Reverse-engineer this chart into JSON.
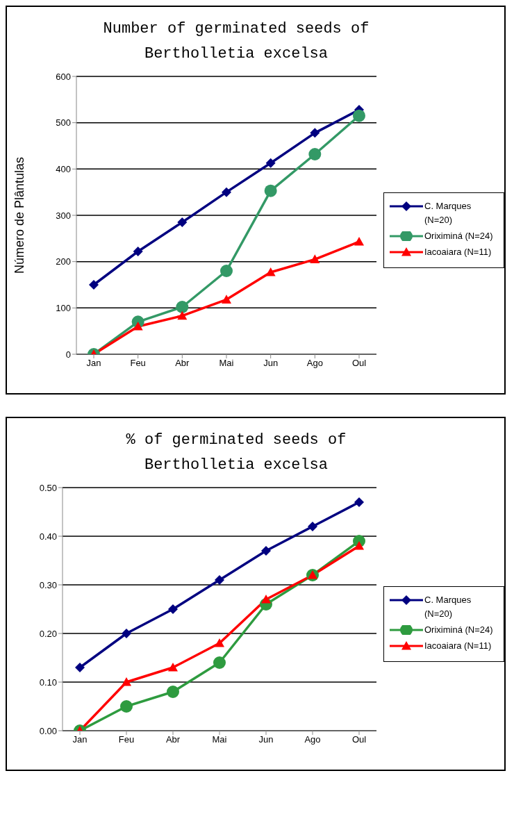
{
  "chart_data": [
    {
      "type": "line",
      "title": "Number of germinated seeds of Bertholletia excelsa",
      "ylabel": "Número de Plântulas",
      "categories": [
        "Jan",
        "Feu",
        "Abr",
        "Mai",
        "Jun",
        "Ago",
        "Oul"
      ],
      "ylim": [
        0,
        600
      ],
      "yticks": [
        0,
        100,
        200,
        300,
        400,
        500,
        600
      ],
      "grid": "y",
      "legend": "right",
      "series": [
        {
          "name": "C. Marques (N=20)",
          "color": "#000080",
          "marker": "diamond",
          "values": [
            150,
            222,
            285,
            350,
            413,
            478,
            528
          ]
        },
        {
          "name": "Oriximiná (N=24)",
          "color": "#339966",
          "marker": "circle",
          "values": [
            0,
            70,
            102,
            180,
            353,
            432,
            515
          ]
        },
        {
          "name": "Iacoaiara (N=11)",
          "color": "#ff0000",
          "marker": "triangle",
          "values": [
            0,
            60,
            83,
            118,
            177,
            205,
            243
          ]
        }
      ]
    },
    {
      "type": "line",
      "title": "% of germinated seeds of Bertholletia excelsa",
      "categories": [
        "Jan",
        "Feu",
        "Abr",
        "Mai",
        "Jun",
        "Ago",
        "Oul"
      ],
      "ylim": [
        0,
        0.5
      ],
      "yticks": [
        {
          "value": 0,
          "label": "0.00"
        },
        {
          "value": 0.1,
          "label": "0.10"
        },
        {
          "value": 0.2,
          "label": "0.20"
        },
        {
          "value": 0.3,
          "label": "0.30"
        },
        {
          "value": 0.4,
          "label": "0.40"
        },
        {
          "value": 0.5,
          "label": "0.50"
        }
      ],
      "grid": "y",
      "legend": "right",
      "series": [
        {
          "name": "C. Marques (N=20)",
          "color": "#000080",
          "marker": "diamond",
          "values": [
            0.13,
            0.2,
            0.25,
            0.31,
            0.37,
            0.42,
            0.47
          ]
        },
        {
          "name": "Oriximiná (N=24)",
          "color": "#2e9b3f",
          "marker": "circle",
          "values": [
            0,
            0.05,
            0.08,
            0.14,
            0.26,
            0.32,
            0.39
          ]
        },
        {
          "name": "Iacoaiara (N=11)",
          "color": "#ff0000",
          "marker": "triangle",
          "values": [
            0,
            0.1,
            0.13,
            0.18,
            0.27,
            0.32,
            0.38
          ]
        }
      ]
    }
  ]
}
